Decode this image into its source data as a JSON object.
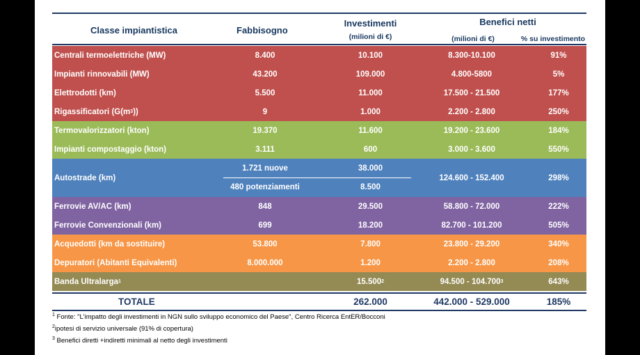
{
  "header": {
    "col_class": "Classe impiantistica",
    "col_need": "Fabbisogno",
    "col_invest": "Investimenti",
    "col_invest_unit": "(milioni di €)",
    "col_benefit": "Benefici netti",
    "col_benefit_unit": "(milioni di €)",
    "col_pct": "% su investimento"
  },
  "rows": [
    {
      "name": "Centrali termoelettriche (MW)",
      "need": "8.400",
      "invest": "10.100",
      "benefit": "8.300-10.100",
      "pct": "91%",
      "color": "#c0504d"
    },
    {
      "name": "Impianti rinnovabili (MW)",
      "need": "43.200",
      "invest": "109.000",
      "benefit": "4.800-5800",
      "pct": "5%",
      "color": "#c0504d"
    },
    {
      "name": "Elettrodotti (km)",
      "need": "5.500",
      "invest": "11.000",
      "benefit": "17.500 - 21.500",
      "pct": "177%",
      "color": "#c0504d"
    },
    {
      "name": "Rigassificatori (G(m",
      "name_sup": "3",
      "name_end": "))",
      "need": "9",
      "invest": "1.000",
      "benefit": "2.200 - 2.800",
      "pct": "250%",
      "color": "#c0504d"
    },
    {
      "name": "Termovalorizzatori (kton)",
      "need": "19.370",
      "invest": "11.600",
      "benefit": "19.200 - 23.600",
      "pct": "184%",
      "color": "#9bbb59"
    },
    {
      "name": "Impianti compostaggio (kton)",
      "need": "3.111",
      "invest": "600",
      "benefit": "3.000 - 3.600",
      "pct": "550%",
      "color": "#9bbb59"
    },
    {
      "name": "Autostrade (km)",
      "need": "1.721 nuove",
      "invest": "38.000",
      "need2": "480 potenziamenti",
      "invest2": "8.500",
      "benefit": "124.600 - 152.400",
      "pct": "298%",
      "color": "#4f81bd"
    },
    {
      "name": "Ferrovie AV/AC (km)",
      "need": "848",
      "invest": "29.500",
      "benefit": "58.800 - 72.000",
      "pct": "222%",
      "color": "#8064a2"
    },
    {
      "name": "Ferrovie Convenzionali (km)",
      "need": "699",
      "invest": "18.200",
      "benefit": "82.700 - 101.200",
      "pct": "505%",
      "color": "#8064a2"
    },
    {
      "name": "Acquedotti (km da sostituire)",
      "need": "53.800",
      "invest": "7.800",
      "benefit": "23.800 - 29.200",
      "pct": "340%",
      "color": "#f79646"
    },
    {
      "name": "Depuratori (Abitanti Equivalenti)",
      "need": "8.000.000",
      "invest": "1.200",
      "benefit": "2.200 - 2.800",
      "pct": "208%",
      "color": "#f79646"
    },
    {
      "name": "Banda Ultralarga",
      "name_sup": "1",
      "need": "",
      "invest": "15.500",
      "invest_sup": "2",
      "benefit": "94.500 - 104.700",
      "benefit_sup": "3",
      "pct": "643%",
      "color": "#948a54"
    }
  ],
  "total": {
    "label": "TOTALE",
    "invest": "262.000",
    "benefit": "442.000 - 529.000",
    "pct": "185%"
  },
  "notes": [
    {
      "num": "1",
      "text": " Fonte: \"L'impatto degli investimenti in NGN sullo sviluppo economico del Paese\", Centro Ricerca EntER/Bocconi"
    },
    {
      "num": "2",
      "text": "ipotesi di servizio universale (91% di copertura)"
    },
    {
      "num": "3",
      "text": " Benefici diretti +indiretti minimali al netto degli investimenti"
    }
  ]
}
